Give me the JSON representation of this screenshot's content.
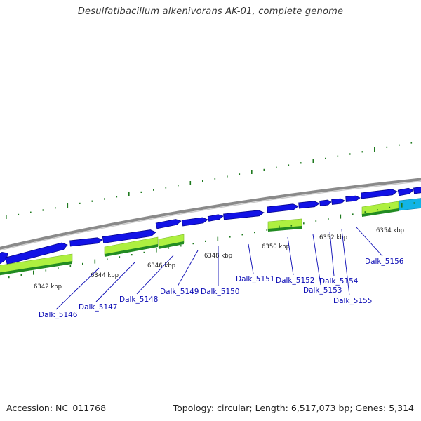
{
  "title": "Desulfatibacillum alkenivorans AK-01, complete genome",
  "footer": {
    "accession": "Accession: NC_011768",
    "summary": "Topology: circular; Length: 6,517,073 bp; Genes: 5,314"
  },
  "ruler_labels": [
    "6342 kbp",
    "6344 kbp",
    "6346 kbp",
    "6348 kbp",
    "6350 kbp",
    "6352 kbp",
    "6354 kbp"
  ],
  "gene_labels": [
    "Dalk_5146",
    "Dalk_5147",
    "Dalk_5148",
    "Dalk_5149",
    "Dalk_5150",
    "Dalk_5151",
    "Dalk_5152",
    "Dalk_5153",
    "Dalk_5154",
    "Dalk_5155",
    "Dalk_5156"
  ],
  "colors": {
    "cds": "#1212e6",
    "cds_dark": "#050590",
    "gene_light": "#aef040",
    "gene_dark": "#228b22",
    "tick": "#1f7a1f",
    "backbone": "#909090",
    "label": "#0a0ab4",
    "cyan_feature": "#12b4e6"
  }
}
